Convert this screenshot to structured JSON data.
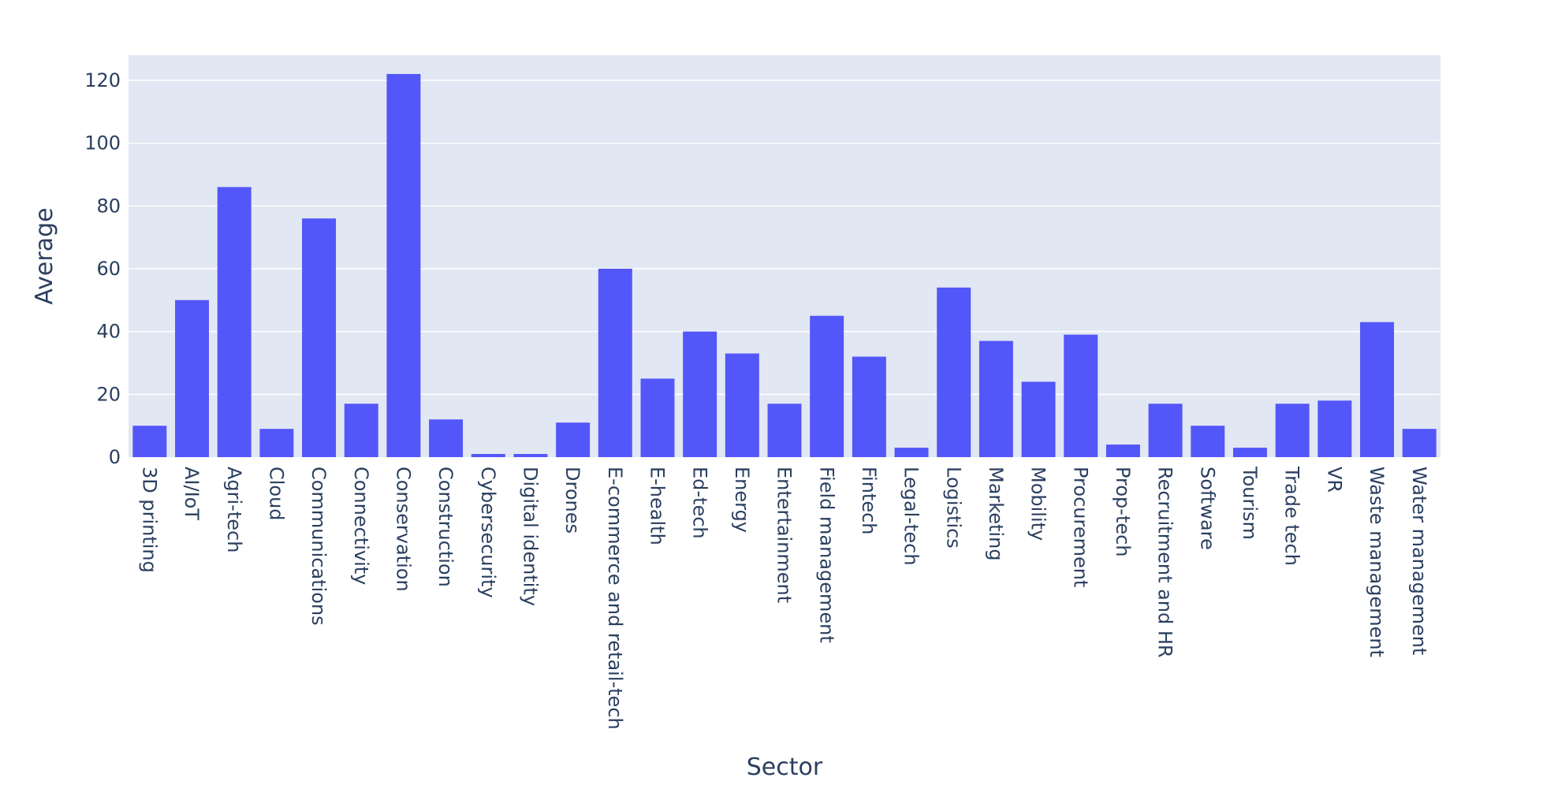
{
  "chart_data": {
    "type": "bar",
    "title": "",
    "xlabel": "Sector",
    "ylabel": "Average",
    "ylim": [
      0,
      128
    ],
    "yticks": [
      0,
      20,
      40,
      60,
      80,
      100,
      120
    ],
    "grid": true,
    "legend": "none",
    "colors": {
      "bar": "#5356f9",
      "plot_background": "#e1e7f3",
      "grid": "#ffffff",
      "text": "#2a3f5f"
    },
    "categories": [
      "3D printing",
      "AI/IoT",
      "Agri-tech",
      "Cloud",
      "Communications",
      "Connectivity",
      "Conservation",
      "Construction",
      "Cybersecurity",
      "Digital identity",
      "Drones",
      "E-commerce and retail-tech",
      "E-health",
      "Ed-tech",
      "Energy",
      "Entertainment",
      "Field management",
      "Fintech",
      "Legal-tech",
      "Logistics",
      "Marketing",
      "Mobility",
      "Procurement",
      "Prop-tech",
      "Recruitment and HR",
      "Software",
      "Tourism",
      "Trade tech",
      "VR",
      "Waste management",
      "Water management"
    ],
    "values": [
      10,
      50,
      86,
      9,
      76,
      17,
      122,
      12,
      1,
      1,
      11,
      60,
      25,
      40,
      33,
      17,
      45,
      32,
      3,
      54,
      37,
      24,
      39,
      4,
      17,
      10,
      3,
      17,
      18,
      43,
      9
    ]
  }
}
